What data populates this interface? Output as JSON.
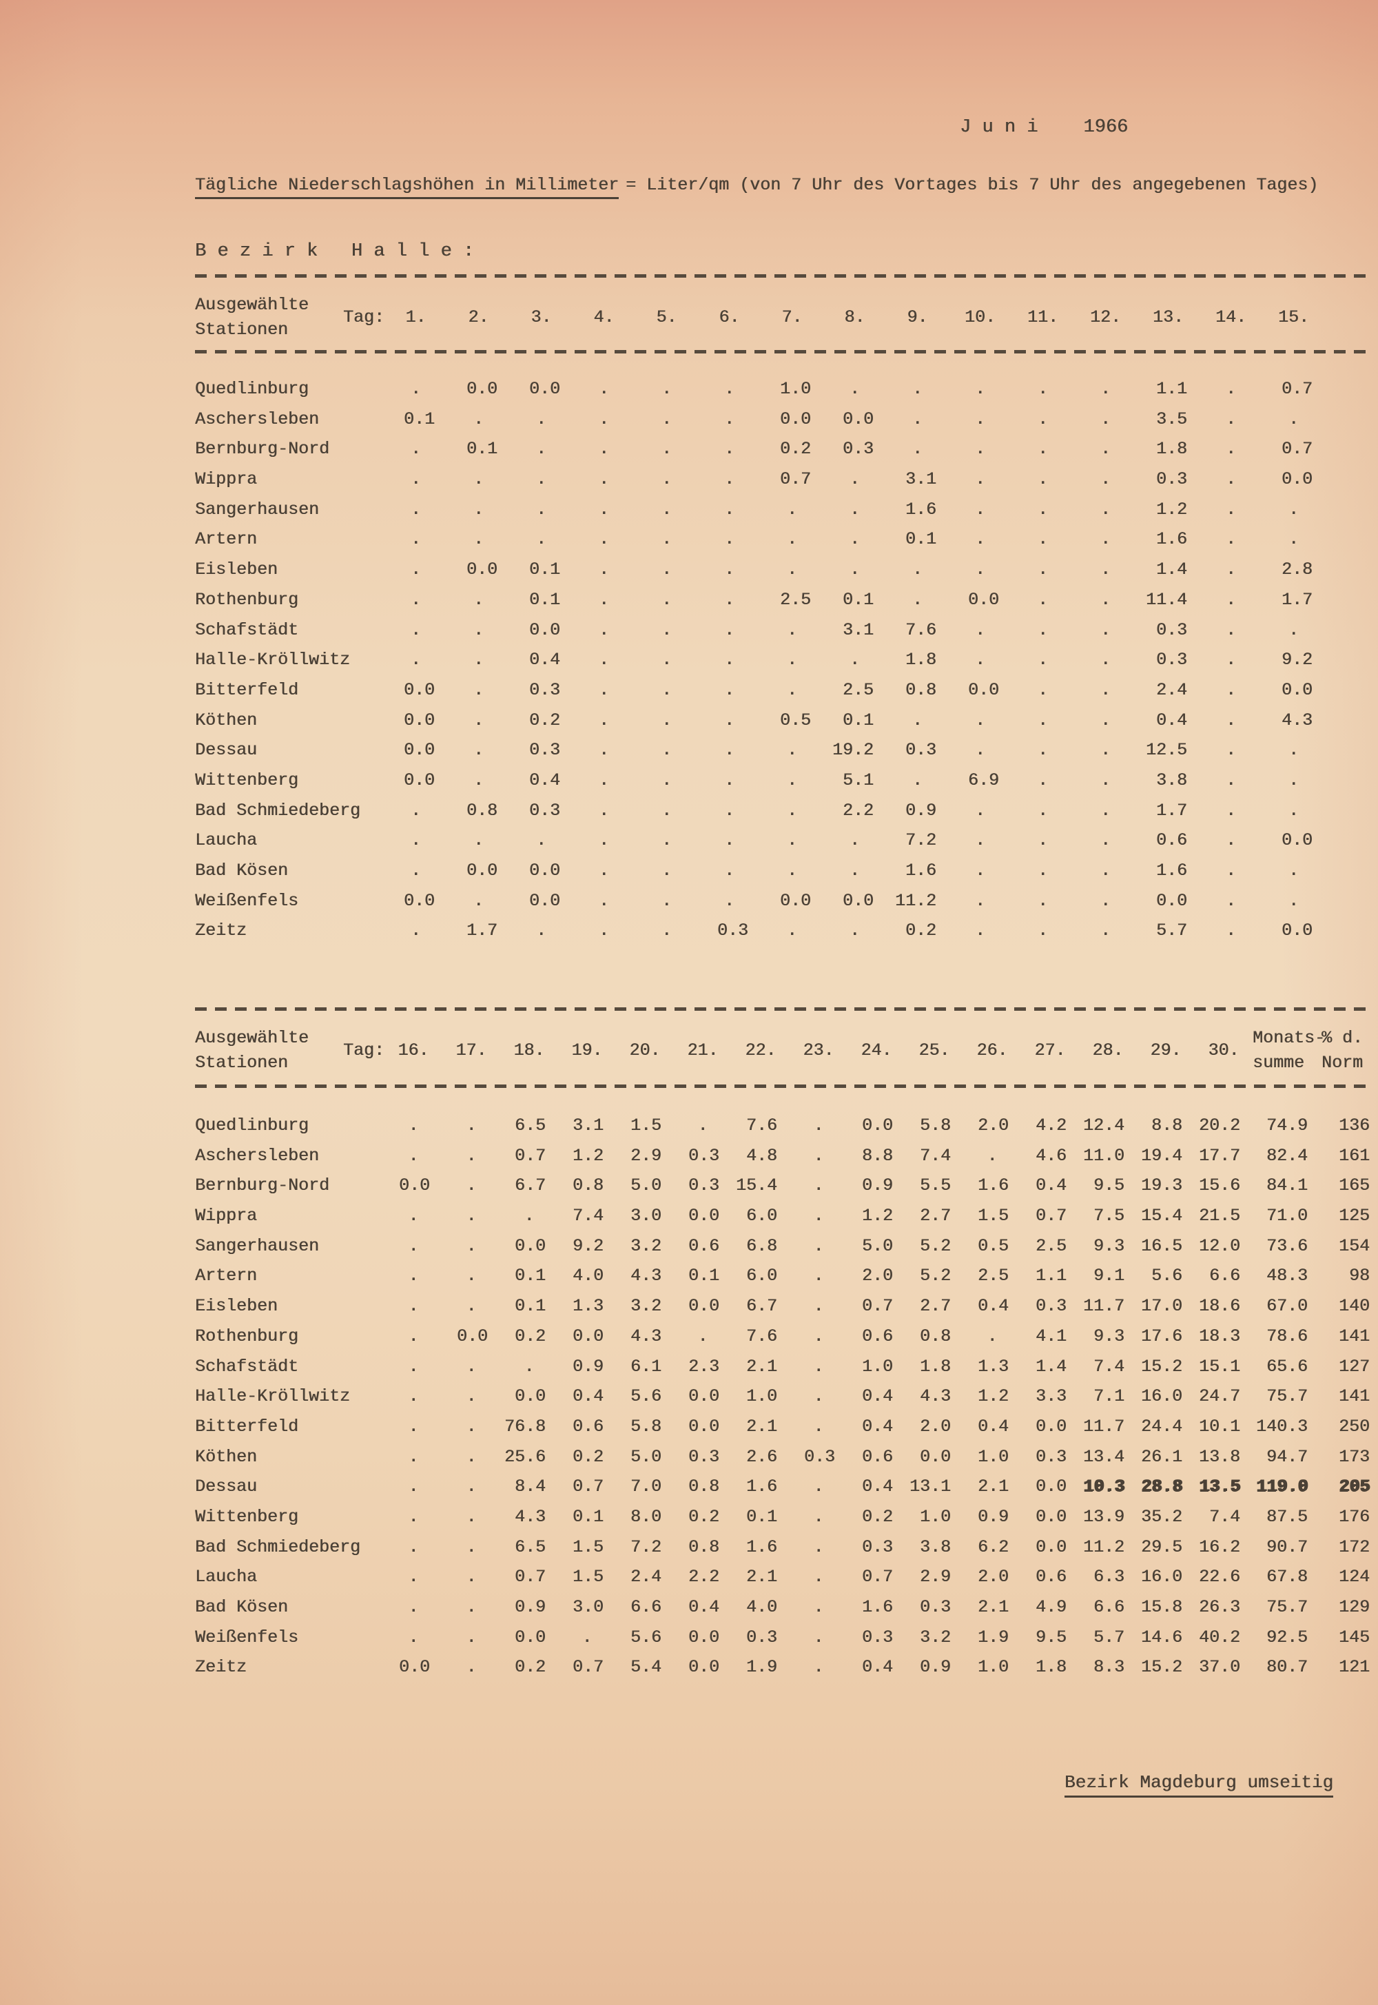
{
  "page": {
    "month_label": "J u n i",
    "year": "1966",
    "title": "Tägliche Niederschlagshöhen in Millimeter",
    "title_rest": "= Liter/qm (von 7 Uhr des Vortages bis 7 Uhr des angegebenen Tages)",
    "section_heading": "B e z i r k   H a l l e :",
    "footer_note": "Bezirk Magdeburg umseitig",
    "ink_color": "#4b4136",
    "paper_color": "#efd4b4"
  },
  "table1": {
    "col_header_line1": "Ausgewählte",
    "col_header_line2": "Stationen",
    "tag_label": "Tag:",
    "day_labels": [
      "1.",
      "2.",
      "3.",
      "4.",
      "5.",
      "6.",
      "7.",
      "8.",
      "9.",
      "10.",
      "11.",
      "12.",
      "13.",
      "14.",
      "15."
    ],
    "rows": [
      {
        "station": "Quedlinburg",
        "values": [
          ".",
          "0.0",
          "0.0",
          ".",
          ".",
          ".",
          "1.0",
          ".",
          ".",
          ".",
          ".",
          ".",
          "1.1",
          ".",
          "0.7"
        ]
      },
      {
        "station": "Aschersleben",
        "values": [
          "0.1",
          ".",
          ".",
          ".",
          ".",
          ".",
          "0.0",
          "0.0",
          ".",
          ".",
          ".",
          ".",
          "3.5",
          ".",
          "."
        ]
      },
      {
        "station": "Bernburg-Nord",
        "values": [
          ".",
          "0.1",
          ".",
          ".",
          ".",
          ".",
          "0.2",
          "0.3",
          ".",
          ".",
          ".",
          ".",
          "1.8",
          ".",
          "0.7"
        ]
      },
      {
        "station": "Wippra",
        "values": [
          ".",
          ".",
          ".",
          ".",
          ".",
          ".",
          "0.7",
          ".",
          "3.1",
          ".",
          ".",
          ".",
          "0.3",
          ".",
          "0.0"
        ]
      },
      {
        "station": "Sangerhausen",
        "values": [
          ".",
          ".",
          ".",
          ".",
          ".",
          ".",
          ".",
          ".",
          "1.6",
          ".",
          ".",
          ".",
          "1.2",
          ".",
          "."
        ]
      },
      {
        "station": "Artern",
        "values": [
          ".",
          ".",
          ".",
          ".",
          ".",
          ".",
          ".",
          ".",
          "0.1",
          ".",
          ".",
          ".",
          "1.6",
          ".",
          "."
        ]
      },
      {
        "station": "Eisleben",
        "values": [
          ".",
          "0.0",
          "0.1",
          ".",
          ".",
          ".",
          ".",
          ".",
          ".",
          ".",
          ".",
          ".",
          "1.4",
          ".",
          "2.8"
        ]
      },
      {
        "station": "Rothenburg",
        "values": [
          ".",
          ".",
          "0.1",
          ".",
          ".",
          ".",
          "2.5",
          "0.1",
          ".",
          "0.0",
          ".",
          ".",
          "11.4",
          ".",
          "1.7"
        ]
      },
      {
        "station": "Schafstädt",
        "values": [
          ".",
          ".",
          "0.0",
          ".",
          ".",
          ".",
          ".",
          "3.1",
          "7.6",
          ".",
          ".",
          ".",
          "0.3",
          ".",
          "."
        ]
      },
      {
        "station": "Halle-Kröllwitz",
        "values": [
          ".",
          ".",
          "0.4",
          ".",
          ".",
          ".",
          ".",
          ".",
          "1.8",
          ".",
          ".",
          ".",
          "0.3",
          ".",
          "9.2"
        ]
      },
      {
        "station": "Bitterfeld",
        "values": [
          "0.0",
          ".",
          "0.3",
          ".",
          ".",
          ".",
          ".",
          "2.5",
          "0.8",
          "0.0",
          ".",
          ".",
          "2.4",
          ".",
          "0.0"
        ]
      },
      {
        "station": "Köthen",
        "values": [
          "0.0",
          ".",
          "0.2",
          ".",
          ".",
          ".",
          "0.5",
          "0.1",
          ".",
          ".",
          ".",
          ".",
          "0.4",
          ".",
          "4.3"
        ]
      },
      {
        "station": "Dessau",
        "values": [
          "0.0",
          ".",
          "0.3",
          ".",
          ".",
          ".",
          ".",
          "19.2",
          "0.3",
          ".",
          ".",
          ".",
          "12.5",
          ".",
          "."
        ]
      },
      {
        "station": "Wittenberg",
        "values": [
          "0.0",
          ".",
          "0.4",
          ".",
          ".",
          ".",
          ".",
          "5.1",
          ".",
          "6.9",
          ".",
          ".",
          "3.8",
          ".",
          "."
        ]
      },
      {
        "station": "Bad Schmiedeberg",
        "values": [
          ".",
          "0.8",
          "0.3",
          ".",
          ".",
          ".",
          ".",
          "2.2",
          "0.9",
          ".",
          ".",
          ".",
          "1.7",
          ".",
          "."
        ]
      },
      {
        "station": "Laucha",
        "values": [
          ".",
          ".",
          ".",
          ".",
          ".",
          ".",
          ".",
          ".",
          "7.2",
          ".",
          ".",
          ".",
          "0.6",
          ".",
          "0.0"
        ]
      },
      {
        "station": "Bad Kösen",
        "values": [
          ".",
          "0.0",
          "0.0",
          ".",
          ".",
          ".",
          ".",
          ".",
          "1.6",
          ".",
          ".",
          ".",
          "1.6",
          ".",
          "."
        ]
      },
      {
        "station": "Weißenfels",
        "values": [
          "0.0",
          ".",
          "0.0",
          ".",
          ".",
          ".",
          "0.0",
          "0.0",
          "11.2",
          ".",
          ".",
          ".",
          "0.0",
          ".",
          "."
        ]
      },
      {
        "station": "Zeitz",
        "values": [
          ".",
          "1.7",
          ".",
          ".",
          ".",
          "0.3",
          ".",
          ".",
          "0.2",
          ".",
          ".",
          ".",
          "5.7",
          ".",
          "0.0"
        ]
      }
    ]
  },
  "table2": {
    "col_header_line1": "Ausgewählte",
    "col_header_line2": "Stationen",
    "tag_label": "Tag:",
    "day_labels": [
      "16.",
      "17.",
      "18.",
      "19.",
      "20.",
      "21.",
      "22.",
      "23.",
      "24.",
      "25.",
      "26.",
      "27.",
      "28.",
      "29.",
      "30."
    ],
    "sum_header_line1": "Monats-",
    "sum_header_line2": "summe",
    "pct_header_line1": "% d.",
    "pct_header_line2": "Norm",
    "overstrike": {
      "row_index": 12,
      "value_indices": [
        12,
        13,
        14
      ],
      "sum": true,
      "pct": true
    },
    "rows": [
      {
        "station": "Quedlinburg",
        "values": [
          ".",
          ".",
          "6.5",
          "3.1",
          "1.5",
          ".",
          "7.6",
          ".",
          "0.0",
          "5.8",
          "2.0",
          "4.2",
          "12.4",
          "8.8",
          "20.2"
        ],
        "sum": "74.9",
        "pct": "136"
      },
      {
        "station": "Aschersleben",
        "values": [
          ".",
          ".",
          "0.7",
          "1.2",
          "2.9",
          "0.3",
          "4.8",
          ".",
          "8.8",
          "7.4",
          ".",
          "4.6",
          "11.0",
          "19.4",
          "17.7"
        ],
        "sum": "82.4",
        "pct": "161"
      },
      {
        "station": "Bernburg-Nord",
        "values": [
          "0.0",
          ".",
          "6.7",
          "0.8",
          "5.0",
          "0.3",
          "15.4",
          ".",
          "0.9",
          "5.5",
          "1.6",
          "0.4",
          "9.5",
          "19.3",
          "15.6"
        ],
        "sum": "84.1",
        "pct": "165"
      },
      {
        "station": "Wippra",
        "values": [
          ".",
          ".",
          ".",
          "7.4",
          "3.0",
          "0.0",
          "6.0",
          ".",
          "1.2",
          "2.7",
          "1.5",
          "0.7",
          "7.5",
          "15.4",
          "21.5"
        ],
        "sum": "71.0",
        "pct": "125"
      },
      {
        "station": "Sangerhausen",
        "values": [
          ".",
          ".",
          "0.0",
          "9.2",
          "3.2",
          "0.6",
          "6.8",
          ".",
          "5.0",
          "5.2",
          "0.5",
          "2.5",
          "9.3",
          "16.5",
          "12.0"
        ],
        "sum": "73.6",
        "pct": "154"
      },
      {
        "station": "Artern",
        "values": [
          ".",
          ".",
          "0.1",
          "4.0",
          "4.3",
          "0.1",
          "6.0",
          ".",
          "2.0",
          "5.2",
          "2.5",
          "1.1",
          "9.1",
          "5.6",
          "6.6"
        ],
        "sum": "48.3",
        "pct": "98"
      },
      {
        "station": "Eisleben",
        "values": [
          ".",
          ".",
          "0.1",
          "1.3",
          "3.2",
          "0.0",
          "6.7",
          ".",
          "0.7",
          "2.7",
          "0.4",
          "0.3",
          "11.7",
          "17.0",
          "18.6"
        ],
        "sum": "67.0",
        "pct": "140"
      },
      {
        "station": "Rothenburg",
        "values": [
          ".",
          "0.0",
          "0.2",
          "0.0",
          "4.3",
          ".",
          "7.6",
          ".",
          "0.6",
          "0.8",
          ".",
          "4.1",
          "9.3",
          "17.6",
          "18.3"
        ],
        "sum": "78.6",
        "pct": "141"
      },
      {
        "station": "Schafstädt",
        "values": [
          ".",
          ".",
          ".",
          "0.9",
          "6.1",
          "2.3",
          "2.1",
          ".",
          "1.0",
          "1.8",
          "1.3",
          "1.4",
          "7.4",
          "15.2",
          "15.1"
        ],
        "sum": "65.6",
        "pct": "127"
      },
      {
        "station": "Halle-Kröllwitz",
        "values": [
          ".",
          ".",
          "0.0",
          "0.4",
          "5.6",
          "0.0",
          "1.0",
          ".",
          "0.4",
          "4.3",
          "1.2",
          "3.3",
          "7.1",
          "16.0",
          "24.7"
        ],
        "sum": "75.7",
        "pct": "141"
      },
      {
        "station": "Bitterfeld",
        "values": [
          ".",
          ".",
          "76.8",
          "0.6",
          "5.8",
          "0.0",
          "2.1",
          ".",
          "0.4",
          "2.0",
          "0.4",
          "0.0",
          "11.7",
          "24.4",
          "10.1"
        ],
        "sum": "140.3",
        "pct": "250"
      },
      {
        "station": "Köthen",
        "values": [
          ".",
          ".",
          "25.6",
          "0.2",
          "5.0",
          "0.3",
          "2.6",
          "0.3",
          "0.6",
          "0.0",
          "1.0",
          "0.3",
          "13.4",
          "26.1",
          "13.8"
        ],
        "sum": "94.7",
        "pct": "173"
      },
      {
        "station": "Dessau",
        "values": [
          ".",
          ".",
          "8.4",
          "0.7",
          "7.0",
          "0.8",
          "1.6",
          ".",
          "0.4",
          "13.1",
          "2.1",
          "0.0",
          "10.3",
          "28.8",
          "13.5"
        ],
        "sum": "119.0",
        "pct": "205"
      },
      {
        "station": "Wittenberg",
        "values": [
          ".",
          ".",
          "4.3",
          "0.1",
          "8.0",
          "0.2",
          "0.1",
          ".",
          "0.2",
          "1.0",
          "0.9",
          "0.0",
          "13.9",
          "35.2",
          "7.4"
        ],
        "sum": "87.5",
        "pct": "176"
      },
      {
        "station": "Bad Schmiedeberg",
        "values": [
          ".",
          ".",
          "6.5",
          "1.5",
          "7.2",
          "0.8",
          "1.6",
          ".",
          "0.3",
          "3.8",
          "6.2",
          "0.0",
          "11.2",
          "29.5",
          "16.2"
        ],
        "sum": "90.7",
        "pct": "172"
      },
      {
        "station": "Laucha",
        "values": [
          ".",
          ".",
          "0.7",
          "1.5",
          "2.4",
          "2.2",
          "2.1",
          ".",
          "0.7",
          "2.9",
          "2.0",
          "0.6",
          "6.3",
          "16.0",
          "22.6"
        ],
        "sum": "67.8",
        "pct": "124"
      },
      {
        "station": "Bad Kösen",
        "values": [
          ".",
          ".",
          "0.9",
          "3.0",
          "6.6",
          "0.4",
          "4.0",
          ".",
          "1.6",
          "0.3",
          "2.1",
          "4.9",
          "6.6",
          "15.8",
          "26.3"
        ],
        "sum": "75.7",
        "pct": "129"
      },
      {
        "station": "Weißenfels",
        "values": [
          ".",
          ".",
          "0.0",
          ".",
          "5.6",
          "0.0",
          "0.3",
          ".",
          "0.3",
          "3.2",
          "1.9",
          "9.5",
          "5.7",
          "14.6",
          "40.2"
        ],
        "sum": "92.5",
        "pct": "145"
      },
      {
        "station": "Zeitz",
        "values": [
          "0.0",
          ".",
          "0.2",
          "0.7",
          "5.4",
          "0.0",
          "1.9",
          ".",
          "0.4",
          "0.9",
          "1.0",
          "1.8",
          "8.3",
          "15.2",
          "37.0"
        ],
        "sum": "80.7",
        "pct": "121"
      }
    ]
  }
}
